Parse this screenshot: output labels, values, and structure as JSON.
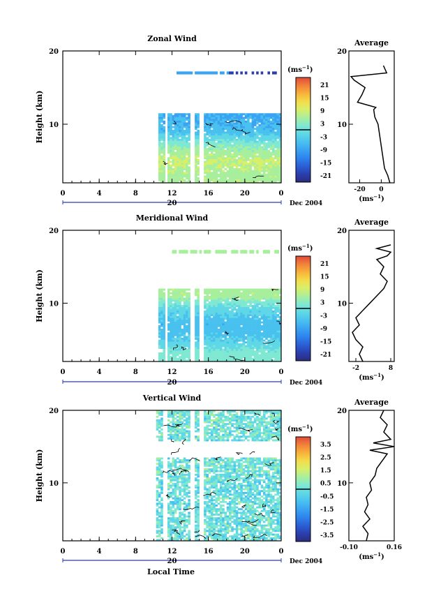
{
  "x_axis_label": "Local Time",
  "date_label": "Dec 2004",
  "day_label": "20",
  "cbar_unit_main": "(ms",
  "cbar_unit_sup": "−1",
  "avg_unit_main": "(ms",
  "avg_unit_sup": "−1",
  "colors": {
    "palette": [
      "#2c2c7c",
      "#2a3fae",
      "#2b5fd5",
      "#2e84ec",
      "#3aa3f2",
      "#49c1ef",
      "#5fd7e6",
      "#7fe8d3",
      "#a8ef9d",
      "#d8ef6a",
      "#f3dd4c",
      "#f8b339",
      "#f2813a",
      "#e0493a"
    ],
    "contour": "#000000"
  },
  "chart_data": [
    {
      "type": "heatmap",
      "title": "Zonal Wind",
      "ylabel": "Height (km)",
      "xlabel": "",
      "xlim": [
        0,
        24
      ],
      "ylim": [
        2,
        20
      ],
      "xticks": [
        "0",
        "4",
        "8",
        "12",
        "16",
        "20",
        "0"
      ],
      "yticks": [
        "10",
        "20"
      ],
      "colorbar": {
        "ticks": [
          "21",
          "15",
          "9",
          "3",
          "-3",
          "-9",
          "-15",
          "-21"
        ],
        "range": [
          -24,
          24
        ]
      },
      "data_gaps_hours": [
        [
          0,
          10.5
        ],
        [
          11.2,
          11.6
        ],
        [
          13.9,
          14.5
        ],
        [
          15.1,
          15.5
        ]
      ],
      "data_top_km": 11.5,
      "upper_layer_km": [
        16.8,
        17.2
      ],
      "field": {
        "description_rows_km": [
          3,
          5,
          7,
          9,
          11
        ],
        "values_ms": [
          6,
          8,
          3,
          -6,
          -8
        ]
      },
      "average": {
        "title": "Average",
        "xlim": [
          -30,
          12
        ],
        "xticks": [
          "-20",
          "0"
        ],
        "height_km": [
          2,
          3,
          4,
          5,
          6,
          7,
          8,
          9,
          10,
          11,
          12,
          12.3,
          13,
          14,
          15,
          16,
          16.5,
          17,
          18
        ],
        "value_ms": [
          8,
          6,
          3,
          2,
          1,
          0,
          -1,
          -2,
          -3,
          -6,
          -7,
          -5,
          -22,
          -18,
          -15,
          -25,
          -28,
          5,
          2
        ]
      }
    },
    {
      "type": "heatmap",
      "title": "Meridional Wind",
      "ylabel": "Height (km)",
      "xlabel": "",
      "xlim": [
        0,
        24
      ],
      "ylim": [
        2,
        20
      ],
      "xticks": [
        "0",
        "4",
        "8",
        "12",
        "16",
        "20",
        "0"
      ],
      "yticks": [
        "10",
        "20"
      ],
      "colorbar": {
        "ticks": [
          "21",
          "15",
          "9",
          "3",
          "-3",
          "-9",
          "-15",
          "-21"
        ],
        "range": [
          -24,
          24
        ]
      },
      "data_gaps_hours": [
        [
          0,
          10.5
        ],
        [
          11.2,
          11.6
        ],
        [
          13.9,
          14.5
        ],
        [
          15.1,
          15.5
        ]
      ],
      "data_top_km": 11.8,
      "upper_layer_km": [
        16.8,
        17.3
      ],
      "field": {
        "description_rows_km": [
          3,
          5,
          7,
          9,
          11
        ],
        "values_ms": [
          2,
          -4,
          -6,
          -2,
          6
        ]
      },
      "average": {
        "title": "Average",
        "xlim": [
          -4,
          9
        ],
        "xticks": [
          "-2",
          "8"
        ],
        "height_km": [
          2,
          3,
          4,
          5,
          6,
          7,
          8,
          9,
          10,
          11,
          12,
          13,
          14,
          15,
          16,
          16.5,
          17,
          17.5,
          18
        ],
        "value_ms": [
          0,
          -1,
          0,
          -2,
          -3,
          -1,
          -2,
          0,
          2,
          4,
          6,
          7,
          5,
          6,
          4,
          7,
          8,
          4,
          8
        ]
      }
    },
    {
      "type": "heatmap",
      "title": "Vertical Wind",
      "ylabel": "Height (km)",
      "xlabel": "Local Time",
      "xlim": [
        0,
        24
      ],
      "ylim": [
        2,
        20
      ],
      "xticks": [
        "0",
        "4",
        "8",
        "12",
        "16",
        "20",
        "0"
      ],
      "yticks": [
        "10",
        "20"
      ],
      "colorbar": {
        "ticks": [
          "3.5",
          "2.5",
          "1.5",
          "0.5",
          "-0.5",
          "-1.5",
          "-2.5",
          "-3.5"
        ],
        "range": [
          -4,
          4
        ]
      },
      "data_gaps_hours": [
        [
          0,
          10.3
        ],
        [
          11.1,
          11.4
        ],
        [
          13.9,
          14.5
        ],
        [
          15.1,
          15.4
        ]
      ],
      "data_top_km": 19.8,
      "field": {
        "description_rows_km": [
          4,
          8,
          12,
          16,
          19
        ],
        "values_ms": [
          0.0,
          -0.1,
          0.1,
          0.0,
          0.1
        ]
      },
      "average": {
        "title": "Average",
        "xlim": [
          -0.1,
          0.16
        ],
        "xticks": [
          "-0.10",
          "0.16"
        ],
        "height_km": [
          2,
          3,
          4,
          5,
          6,
          7,
          8,
          9,
          10,
          11,
          12,
          13,
          14,
          14.5,
          15,
          15.5,
          16,
          17,
          18,
          19,
          20
        ],
        "value_ms": [
          0.0,
          0.01,
          -0.02,
          0.02,
          -0.01,
          0.01,
          0.0,
          0.03,
          0.02,
          0.05,
          0.06,
          0.09,
          0.12,
          0.02,
          0.16,
          0.04,
          0.14,
          0.1,
          0.12,
          0.08,
          0.1
        ]
      }
    }
  ]
}
